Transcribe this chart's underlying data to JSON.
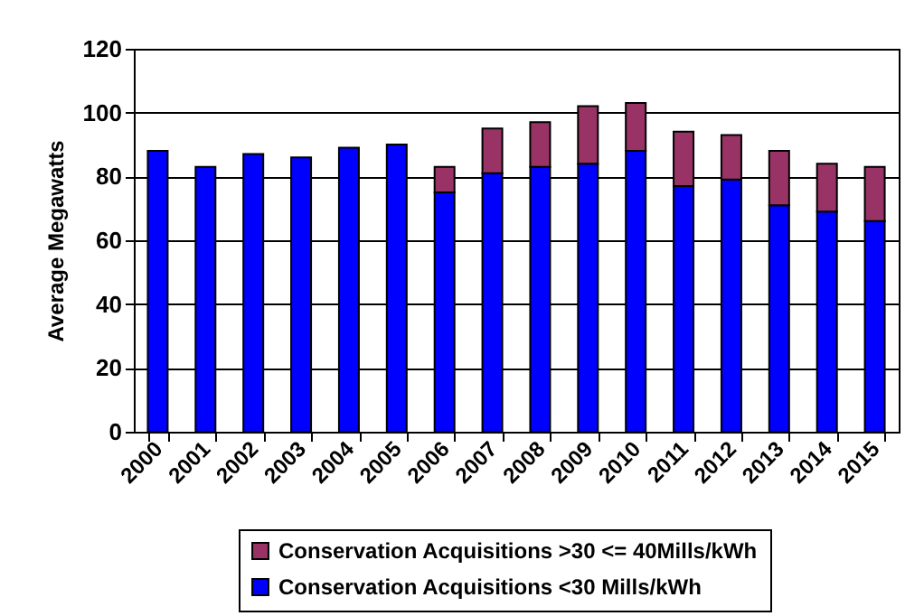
{
  "chart_data": {
    "type": "bar",
    "stacked": true,
    "ylabel": "Average Megawatts",
    "categories": [
      "2000",
      "2001",
      "2002",
      "2003",
      "2004",
      "2005",
      "2006",
      "2007",
      "2008",
      "2009",
      "2010",
      "2011",
      "2012",
      "2013",
      "2014",
      "2015"
    ],
    "series": [
      {
        "name": "Conservation Acquisitions <30 Mills/kWh",
        "color": "#0000ff",
        "values": [
          88,
          83,
          87,
          86,
          89,
          90,
          75,
          81,
          83,
          84,
          88,
          77,
          79,
          71,
          69,
          66
        ]
      },
      {
        "name": "Conservation Acquisitions >30 <= 40Mills/kWh",
        "color": "#993366",
        "values": [
          null,
          null,
          null,
          null,
          null,
          null,
          8,
          14,
          14,
          18,
          15,
          17,
          14,
          17,
          15,
          17
        ]
      }
    ],
    "ylim": [
      0,
      120
    ],
    "yticks": [
      0,
      20,
      40,
      60,
      80,
      100,
      120
    ],
    "grid": "y",
    "legend": "bottom"
  }
}
